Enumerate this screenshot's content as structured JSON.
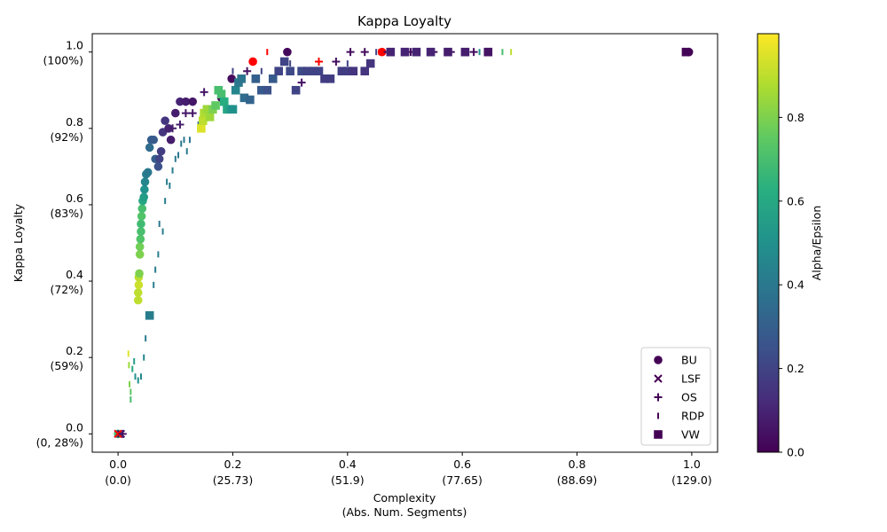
{
  "chart_data": {
    "type": "scatter",
    "title": "Kappa Loyalty",
    "xlabel_line1": "Complexity",
    "xlabel_line2": "(Abs. Num. Segments)",
    "ylabel": "Kappa Loyalty",
    "xlim": [
      -0.045,
      1.045
    ],
    "ylim": [
      -0.048,
      1.048
    ],
    "x_ticks": [
      {
        "value": 0.0,
        "label": "0.0",
        "sub": "(0.0)"
      },
      {
        "value": 0.2,
        "label": "0.2",
        "sub": "(25.73)"
      },
      {
        "value": 0.4,
        "label": "0.4",
        "sub": "(51.9)"
      },
      {
        "value": 0.6,
        "label": "0.6",
        "sub": "(77.65)"
      },
      {
        "value": 0.8,
        "label": "0.8",
        "sub": "(88.69)"
      },
      {
        "value": 1.0,
        "label": "1.0",
        "sub": "(129.0)"
      }
    ],
    "y_ticks": [
      {
        "value": 0.0,
        "label": "0.0",
        "sub": "(0, 28%)"
      },
      {
        "value": 0.2,
        "label": "0.2",
        "sub": "(59%)"
      },
      {
        "value": 0.4,
        "label": "0.4",
        "sub": "(72%)"
      },
      {
        "value": 0.6,
        "label": "0.6",
        "sub": "(83%)"
      },
      {
        "value": 0.8,
        "label": "0.8",
        "sub": "(92%)"
      },
      {
        "value": 1.0,
        "label": "1.0",
        "sub": "(100%)"
      }
    ],
    "colorbar": {
      "label": "Alpha/Epsilon",
      "range": [
        0,
        1
      ],
      "ticks": [
        {
          "value": 0.0,
          "label": "0.0"
        },
        {
          "value": 0.2,
          "label": "0.2"
        },
        {
          "value": 0.4,
          "label": "0.4"
        },
        {
          "value": 0.6,
          "label": "0.6"
        },
        {
          "value": 0.8,
          "label": "0.8"
        }
      ],
      "colormap": "viridis"
    },
    "legend": {
      "placement": "lower-right",
      "entries": [
        {
          "name": "BU",
          "marker": "circle"
        },
        {
          "name": "LSF",
          "marker": "x"
        },
        {
          "name": "OS",
          "marker": "plus"
        },
        {
          "name": "RDP",
          "marker": "vline"
        },
        {
          "name": "VW",
          "marker": "square"
        }
      ]
    },
    "highlight_color": "#ff0000",
    "series": [
      {
        "name": "BU",
        "marker": "circle",
        "points": [
          [
            0.0,
            0.0,
            0.7
          ],
          [
            0.035,
            0.35,
            0.9
          ],
          [
            0.035,
            0.37,
            0.9
          ],
          [
            0.036,
            0.39,
            0.92
          ],
          [
            0.036,
            0.41,
            0.9
          ],
          [
            0.037,
            0.42,
            0.8
          ],
          [
            0.038,
            0.47,
            0.8
          ],
          [
            0.038,
            0.49,
            0.78
          ],
          [
            0.039,
            0.51,
            0.72
          ],
          [
            0.04,
            0.53,
            0.7
          ],
          [
            0.04,
            0.55,
            0.68
          ],
          [
            0.041,
            0.57,
            0.72
          ],
          [
            0.042,
            0.59,
            0.7
          ],
          [
            0.043,
            0.61,
            0.6
          ],
          [
            0.045,
            0.62,
            0.55
          ],
          [
            0.046,
            0.64,
            0.5
          ],
          [
            0.047,
            0.66,
            0.45
          ],
          [
            0.049,
            0.68,
            0.42
          ],
          [
            0.052,
            0.685,
            0.4
          ],
          [
            0.055,
            0.75,
            0.35
          ],
          [
            0.058,
            0.77,
            0.3
          ],
          [
            0.062,
            0.77,
            0.28
          ],
          [
            0.065,
            0.72,
            0.3
          ],
          [
            0.07,
            0.7,
            0.25
          ],
          [
            0.072,
            0.72,
            0.2
          ],
          [
            0.075,
            0.74,
            0.18
          ],
          [
            0.078,
            0.79,
            0.15
          ],
          [
            0.082,
            0.82,
            0.15
          ],
          [
            0.088,
            0.8,
            0.1
          ],
          [
            0.092,
            0.77,
            0.08
          ],
          [
            0.1,
            0.84,
            0.08
          ],
          [
            0.108,
            0.87,
            0.1
          ],
          [
            0.118,
            0.87,
            0.08
          ],
          [
            0.13,
            0.87,
            0.06
          ],
          [
            0.18,
            0.88,
            0.05
          ],
          [
            0.198,
            0.93,
            0.03
          ],
          [
            0.295,
            1.0,
            0.02
          ],
          [
            0.995,
            1.0,
            0.01
          ]
        ],
        "highlighted": [
          [
            0.235,
            0.975
          ],
          [
            0.46,
            1.0
          ]
        ]
      },
      {
        "name": "LSF",
        "marker": "x",
        "points": [
          [
            0.0,
            0.0,
            0.08
          ],
          [
            0.005,
            0.0,
            0.05
          ]
        ],
        "highlighted": [
          [
            0.0,
            0.0
          ]
        ]
      },
      {
        "name": "OS",
        "marker": "plus",
        "points": [
          [
            0.008,
            0.0,
            0.05
          ],
          [
            0.095,
            0.8,
            0.08
          ],
          [
            0.108,
            0.81,
            0.08
          ],
          [
            0.118,
            0.84,
            0.06
          ],
          [
            0.13,
            0.84,
            0.06
          ],
          [
            0.15,
            0.895,
            0.06
          ],
          [
            0.18,
            0.88,
            0.05
          ],
          [
            0.225,
            0.95,
            0.05
          ],
          [
            0.32,
            0.92,
            0.05
          ],
          [
            0.38,
            0.975,
            0.04
          ],
          [
            0.405,
            1.0,
            0.03
          ],
          [
            0.43,
            1.0,
            0.03
          ],
          [
            0.47,
            1.0,
            0.03
          ],
          [
            0.51,
            1.0,
            0.03
          ],
          [
            0.55,
            1.0,
            0.03
          ],
          [
            0.58,
            1.0,
            0.03
          ],
          [
            0.62,
            1.0,
            0.03
          ]
        ],
        "highlighted": [
          [
            0.35,
            0.975
          ]
        ]
      },
      {
        "name": "RDP",
        "marker": "vline",
        "points": [
          [
            0.018,
            0.21,
            0.95
          ],
          [
            0.019,
            0.18,
            0.85
          ],
          [
            0.02,
            0.13,
            0.8
          ],
          [
            0.022,
            0.11,
            0.75
          ],
          [
            0.022,
            0.09,
            0.7
          ],
          [
            0.025,
            0.17,
            0.6
          ],
          [
            0.028,
            0.19,
            0.55
          ],
          [
            0.03,
            0.15,
            0.5
          ],
          [
            0.035,
            0.14,
            0.5
          ],
          [
            0.04,
            0.15,
            0.45
          ],
          [
            0.045,
            0.2,
            0.45
          ],
          [
            0.048,
            0.25,
            0.42
          ],
          [
            0.052,
            0.31,
            0.4
          ],
          [
            0.062,
            0.39,
            0.42
          ],
          [
            0.065,
            0.43,
            0.42
          ],
          [
            0.07,
            0.47,
            0.42
          ],
          [
            0.072,
            0.55,
            0.4
          ],
          [
            0.078,
            0.53,
            0.42
          ],
          [
            0.082,
            0.61,
            0.42
          ],
          [
            0.085,
            0.66,
            0.42
          ],
          [
            0.09,
            0.65,
            0.42
          ],
          [
            0.095,
            0.69,
            0.42
          ],
          [
            0.1,
            0.72,
            0.4
          ],
          [
            0.105,
            0.73,
            0.4
          ],
          [
            0.11,
            0.76,
            0.4
          ],
          [
            0.115,
            0.77,
            0.4
          ],
          [
            0.12,
            0.74,
            0.4
          ],
          [
            0.125,
            0.77,
            0.38
          ],
          [
            0.14,
            0.81,
            0.35
          ],
          [
            0.16,
            0.85,
            0.3
          ],
          [
            0.2,
            0.95,
            0.2
          ],
          [
            0.25,
            0.95,
            0.2
          ],
          [
            0.3,
            0.97,
            0.2
          ],
          [
            0.35,
            0.95,
            0.2
          ],
          [
            0.4,
            0.97,
            0.2
          ],
          [
            0.45,
            1.0,
            0.2
          ],
          [
            0.48,
            1.0,
            0.25
          ],
          [
            0.5,
            1.0,
            0.3
          ],
          [
            0.55,
            1.0,
            0.35
          ],
          [
            0.6,
            1.0,
            0.4
          ],
          [
            0.63,
            1.0,
            0.5
          ],
          [
            0.65,
            1.0,
            0.6
          ],
          [
            0.67,
            1.0,
            0.7
          ],
          [
            0.685,
            1.0,
            0.9
          ]
        ],
        "highlighted": [
          [
            0.26,
            1.0
          ],
          [
            0.455,
            1.0
          ]
        ]
      },
      {
        "name": "VW",
        "marker": "square",
        "points": [
          [
            0.055,
            0.31,
            0.42
          ],
          [
            0.145,
            0.8,
            0.95
          ],
          [
            0.148,
            0.82,
            0.9
          ],
          [
            0.15,
            0.84,
            0.88
          ],
          [
            0.155,
            0.85,
            0.85
          ],
          [
            0.16,
            0.83,
            0.85
          ],
          [
            0.165,
            0.85,
            0.8
          ],
          [
            0.17,
            0.86,
            0.75
          ],
          [
            0.175,
            0.9,
            0.7
          ],
          [
            0.18,
            0.89,
            0.7
          ],
          [
            0.185,
            0.87,
            0.62
          ],
          [
            0.19,
            0.85,
            0.6
          ],
          [
            0.195,
            0.85,
            0.55
          ],
          [
            0.2,
            0.85,
            0.5
          ],
          [
            0.205,
            0.9,
            0.45
          ],
          [
            0.21,
            0.92,
            0.4
          ],
          [
            0.215,
            0.93,
            0.38
          ],
          [
            0.22,
            0.88,
            0.35
          ],
          [
            0.23,
            0.875,
            0.32
          ],
          [
            0.24,
            0.93,
            0.3
          ],
          [
            0.25,
            0.9,
            0.28
          ],
          [
            0.26,
            0.9,
            0.25
          ],
          [
            0.27,
            0.93,
            0.28
          ],
          [
            0.28,
            0.95,
            0.2
          ],
          [
            0.29,
            0.975,
            0.2
          ],
          [
            0.3,
            0.95,
            0.22
          ],
          [
            0.31,
            0.9,
            0.2
          ],
          [
            0.32,
            0.95,
            0.22
          ],
          [
            0.33,
            0.95,
            0.2
          ],
          [
            0.34,
            0.95,
            0.2
          ],
          [
            0.35,
            0.95,
            0.2
          ],
          [
            0.36,
            0.93,
            0.18
          ],
          [
            0.37,
            0.93,
            0.18
          ],
          [
            0.39,
            0.95,
            0.18
          ],
          [
            0.4,
            0.95,
            0.18
          ],
          [
            0.41,
            0.95,
            0.15
          ],
          [
            0.43,
            0.95,
            0.15
          ],
          [
            0.44,
            0.97,
            0.15
          ],
          [
            0.475,
            1.0,
            0.1
          ],
          [
            0.5,
            1.0,
            0.1
          ],
          [
            0.52,
            1.0,
            0.1
          ],
          [
            0.545,
            1.0,
            0.1
          ],
          [
            0.575,
            1.0,
            0.08
          ],
          [
            0.605,
            1.0,
            0.08
          ],
          [
            0.645,
            1.0,
            0.05
          ],
          [
            0.99,
            1.0,
            0.01
          ]
        ],
        "highlighted": []
      }
    ]
  }
}
